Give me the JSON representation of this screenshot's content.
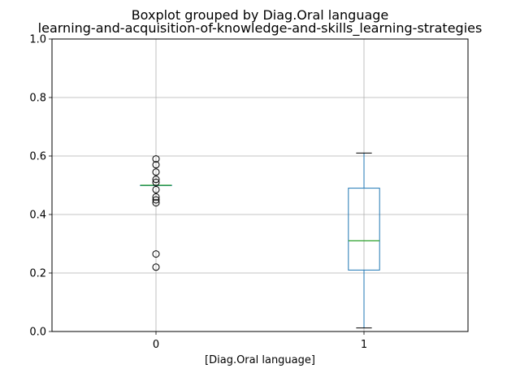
{
  "chart_data": {
    "type": "boxplot",
    "title": "Boxplot grouped by Diag.Oral language",
    "subtitle": "learning-and-acquisition-of-knowledge-and-skills_learning-strategies",
    "xlabel": "[Diag.Oral language]",
    "ylabel": "",
    "ylim": [
      0,
      1
    ],
    "yticks": [
      "0.0",
      "0.2",
      "0.4",
      "0.6",
      "0.8",
      "1.0"
    ],
    "grid": true,
    "categories": [
      "0",
      "1"
    ],
    "boxes": [
      {
        "category": "0",
        "whisker_low": 0.5,
        "q1": 0.5,
        "median": 0.5,
        "q3": 0.5,
        "whisker_high": 0.5,
        "outliers": [
          0.59,
          0.57,
          0.545,
          0.52,
          0.51,
          0.485,
          0.46,
          0.45,
          0.44,
          0.265,
          0.22
        ]
      },
      {
        "category": "1",
        "whisker_low": 0.012,
        "q1": 0.21,
        "median": 0.31,
        "q3": 0.49,
        "whisker_high": 0.61,
        "outliers": []
      }
    ],
    "colors": {
      "box": "#1f77b4",
      "median": "#2ca02c",
      "whisker": "#000000",
      "grid": "#b0b0b0"
    }
  }
}
